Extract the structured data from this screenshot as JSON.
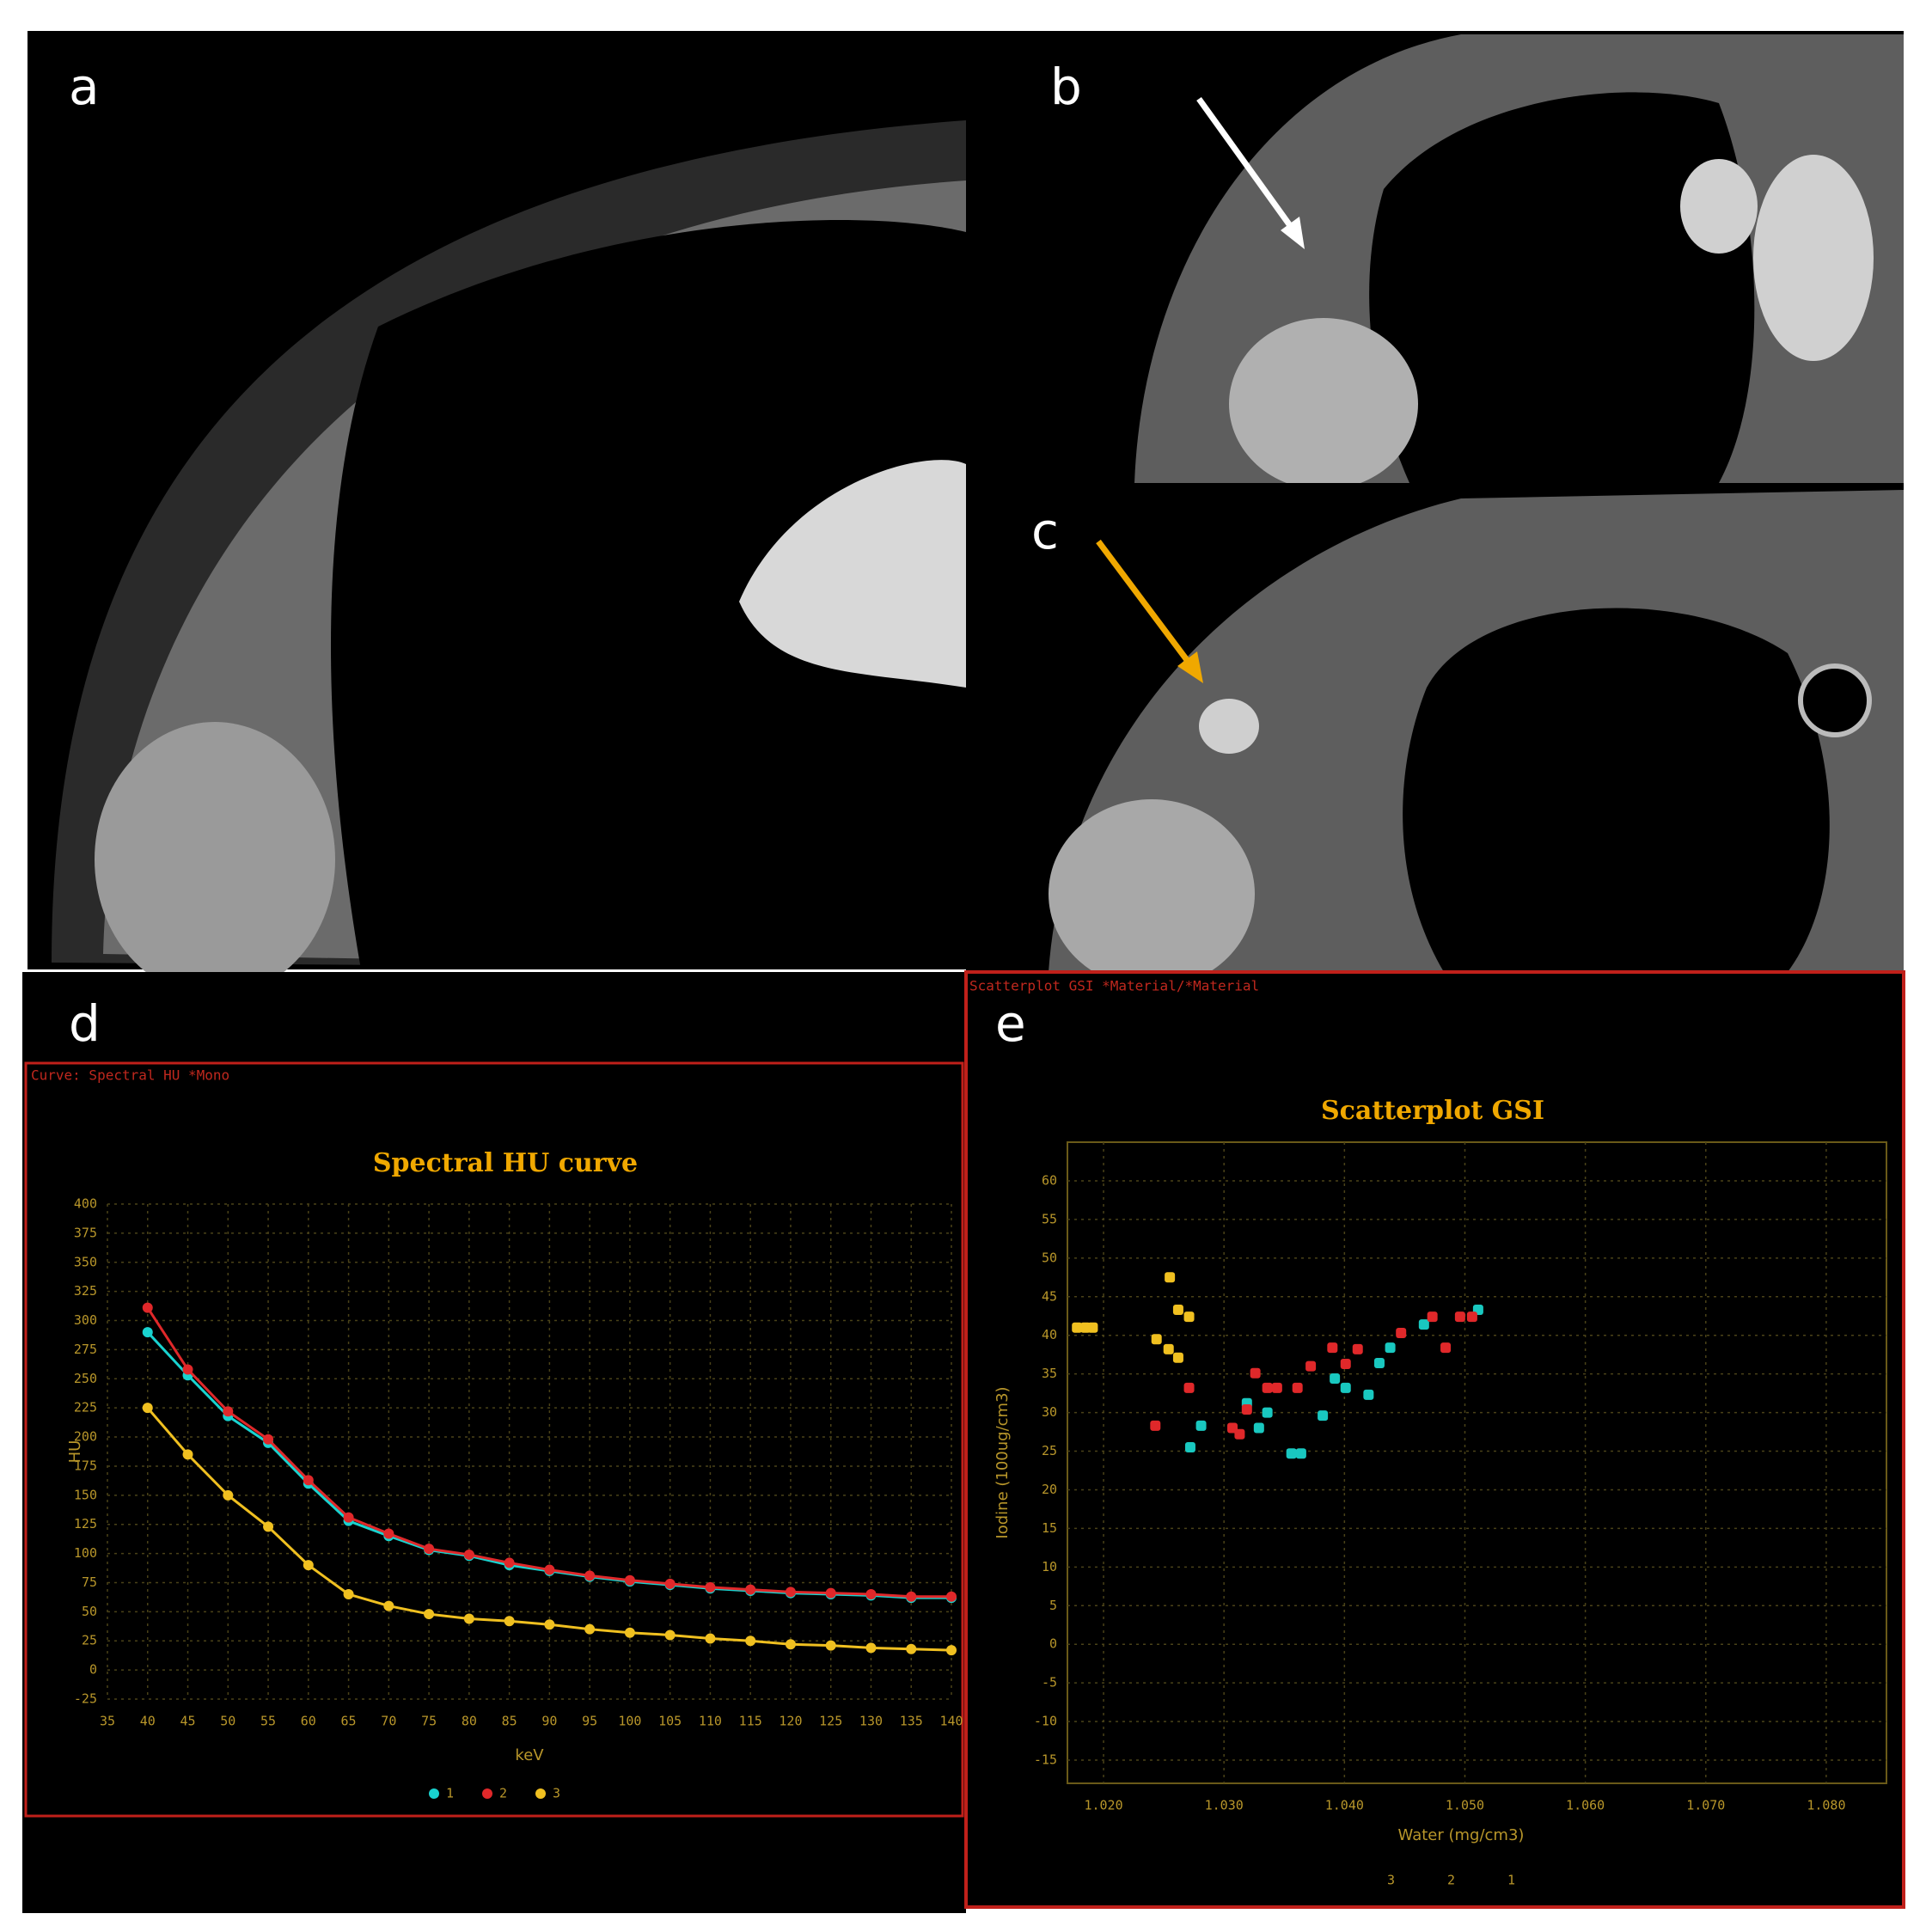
{
  "panel_labels": [
    "a",
    "b",
    "c",
    "d",
    "e"
  ],
  "chart_data": [
    {
      "type": "line",
      "title": "Spectral HU curve",
      "caption": "Curve: Spectral HU *Mono",
      "x_label": "keV",
      "y_label": "HU",
      "x": [
        40,
        45,
        50,
        55,
        60,
        65,
        70,
        75,
        80,
        85,
        90,
        95,
        100,
        105,
        110,
        115,
        120,
        125,
        130,
        135,
        140
      ],
      "series": [
        {
          "name": "1",
          "color": "#19d3d0",
          "values": [
            290,
            253,
            218,
            195,
            160,
            128,
            115,
            103,
            98,
            90,
            85,
            80,
            76,
            73,
            70,
            68,
            66,
            65,
            64,
            62,
            62
          ]
        },
        {
          "name": "2",
          "color": "#e0282a",
          "values": [
            311,
            258,
            222,
            198,
            163,
            131,
            117,
            104,
            99,
            92,
            86,
            81,
            77,
            74,
            71,
            69,
            67,
            66,
            65,
            63,
            63
          ]
        },
        {
          "name": "3",
          "color": "#f0c020",
          "values": [
            225,
            185,
            150,
            123,
            90,
            65,
            55,
            48,
            44,
            42,
            39,
            35,
            32,
            30,
            27,
            25,
            22,
            21,
            19,
            18,
            17
          ]
        }
      ],
      "xlim": [
        35,
        140
      ],
      "xticks": [
        35,
        40,
        45,
        50,
        55,
        60,
        65,
        70,
        75,
        80,
        85,
        90,
        95,
        100,
        105,
        110,
        115,
        120,
        125,
        130,
        135,
        140
      ],
      "ylim": [
        -25,
        400
      ],
      "yticks": [
        -25,
        0,
        25,
        50,
        75,
        100,
        125,
        150,
        175,
        200,
        225,
        250,
        275,
        300,
        325,
        350,
        375,
        400
      ],
      "grid": true
    },
    {
      "type": "scatter",
      "title": "Scatterplot GSI",
      "caption": "Scatterplot GSI *Material/*Material",
      "x_label": "Water (mg/cm3)",
      "y_label": "Iodine (100ug/cm3)",
      "series": [
        {
          "name": "1",
          "color": "#19c8c0",
          "x": [
            1.0272,
            1.0281,
            1.0319,
            1.0329,
            1.0336,
            1.0356,
            1.0364,
            1.0382,
            1.0392,
            1.0401,
            1.042,
            1.0429,
            1.0438,
            1.0466,
            1.0511
          ],
          "values": [
            25.5,
            28.3,
            31.2,
            28,
            30,
            24.7,
            24.7,
            29.6,
            34.4,
            33.2,
            32.3,
            36.4,
            38.4,
            41.4,
            43.3
          ]
        },
        {
          "name": "2",
          "color": "#e0282a",
          "x": [
            1.0243,
            1.0271,
            1.0307,
            1.0313,
            1.0319,
            1.0326,
            1.0336,
            1.0344,
            1.0361,
            1.0372,
            1.039,
            1.0401,
            1.0411,
            1.0447,
            1.0473,
            1.0484,
            1.0496,
            1.0506
          ],
          "values": [
            28.3,
            33.2,
            28,
            27.2,
            30.4,
            35.1,
            33.2,
            33.2,
            33.2,
            36,
            38.4,
            36.3,
            38.2,
            40.3,
            42.4,
            38.4,
            42.4,
            42.4
          ]
        },
        {
          "name": "3",
          "color": "#f0c020",
          "x": [
            1.0178,
            1.0185,
            1.0191,
            1.0255,
            1.0262,
            1.0271,
            1.0244,
            1.0254,
            1.0262
          ],
          "values": [
            41,
            41,
            41,
            47.5,
            43.3,
            42.4,
            39.5,
            38.2,
            37.1
          ]
        }
      ],
      "xlim": [
        1.017,
        1.085
      ],
      "xticks": [
        {
          "value": 1.02,
          "label": "1.020"
        },
        {
          "value": 1.03,
          "label": "1.030"
        },
        {
          "value": 1.04,
          "label": "1.040"
        },
        {
          "value": 1.05,
          "label": "1.050"
        },
        {
          "value": 1.06,
          "label": "1.060"
        },
        {
          "value": 1.07,
          "label": "1.070"
        },
        {
          "value": 1.08,
          "label": "1.080"
        }
      ],
      "ylim": [
        -18,
        65
      ],
      "yticks": [
        -15,
        -10,
        -5,
        0,
        5,
        10,
        15,
        20,
        25,
        30,
        35,
        40,
        45,
        50,
        55,
        60
      ],
      "grid": true
    }
  ]
}
